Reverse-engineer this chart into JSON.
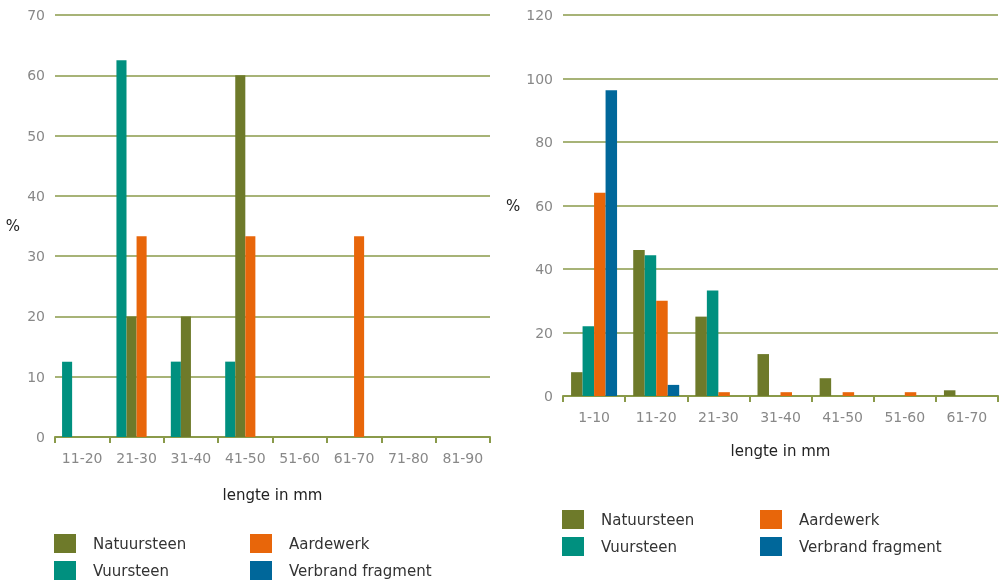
{
  "chart_data": [
    {
      "type": "bar",
      "xlabel": "lengte in mm",
      "ylabel": "%",
      "categories": [
        "11-20",
        "21-30",
        "31-40",
        "41-50",
        "51-60",
        "61-70",
        "71-80",
        "81-90"
      ],
      "ylim": [
        0,
        70
      ],
      "yticks": [
        0,
        10,
        20,
        30,
        40,
        50,
        60,
        70
      ],
      "grid": "y",
      "legend": "bottom",
      "series": [
        {
          "name": "Vuursteen",
          "color": "#00907f",
          "values": [
            12.5,
            62.5,
            12.5,
            12.5,
            null,
            null,
            null,
            null
          ]
        },
        {
          "name": "Natuursteen",
          "color": "#6e7a2a",
          "values": [
            null,
            20,
            20,
            60,
            null,
            null,
            null,
            null
          ]
        },
        {
          "name": "Aardewerk",
          "color": "#e8660a",
          "values": [
            null,
            33.3,
            null,
            33.3,
            null,
            33.3,
            null,
            null
          ]
        },
        {
          "name": "Verbrand fragment",
          "color": "#00679a",
          "values": [
            null,
            null,
            null,
            null,
            null,
            null,
            null,
            null
          ]
        }
      ]
    },
    {
      "type": "bar",
      "xlabel": "lengte in mm",
      "ylabel": "%",
      "categories": [
        "1-10",
        "11-20",
        "21-30",
        "31-40",
        "41-50",
        "51-60",
        "61-70"
      ],
      "ylim": [
        0,
        120
      ],
      "yticks": [
        0,
        20,
        40,
        60,
        80,
        100,
        120
      ],
      "grid": "y",
      "legend": "bottom",
      "series": [
        {
          "name": "Natuursteen",
          "color": "#6e7a2a",
          "values": [
            7.5,
            46,
            25,
            13.2,
            5.6,
            null,
            1.8
          ]
        },
        {
          "name": "Vuursteen",
          "color": "#00907f",
          "values": [
            22,
            44.3,
            33.2,
            null,
            null,
            null,
            null
          ]
        },
        {
          "name": "Aardewerk",
          "color": "#e8660a",
          "values": [
            64,
            30,
            1.2,
            1.2,
            1.2,
            1.2,
            null
          ]
        },
        {
          "name": "Verbrand fragment",
          "color": "#00679a",
          "values": [
            96.3,
            3.5,
            null,
            null,
            null,
            null,
            null
          ]
        }
      ]
    }
  ]
}
